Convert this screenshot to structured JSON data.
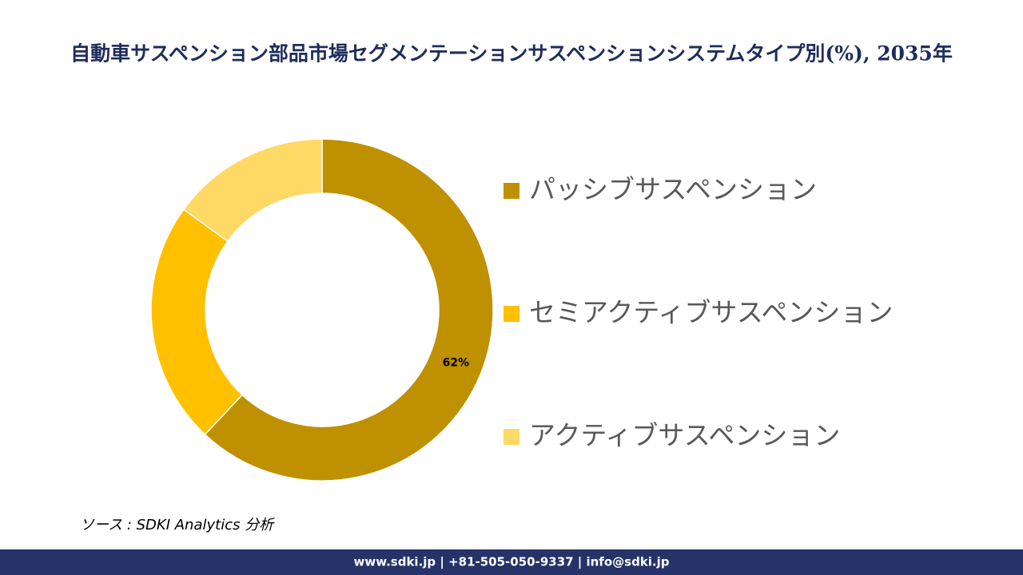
{
  "chart_data": {
    "type": "donut",
    "title": "自動車サスペンション部品市場セグメンテーションサスペンションシステムタイプ別(%), 2035年",
    "categories": [
      "パッシブサスペンション",
      "セミアクティブサスペンション",
      "アクティブサスペンション"
    ],
    "values": [
      62,
      23,
      15
    ],
    "value_labels": [
      "62%",
      null,
      null
    ],
    "colors": [
      "#bf9000",
      "#ffc000",
      "#ffd966"
    ],
    "legend": "right"
  },
  "source": "ソース : SDKI Analytics 分析",
  "footer": "www.sdki.jp | +81-505-050-9337 | info@sdki.jp"
}
